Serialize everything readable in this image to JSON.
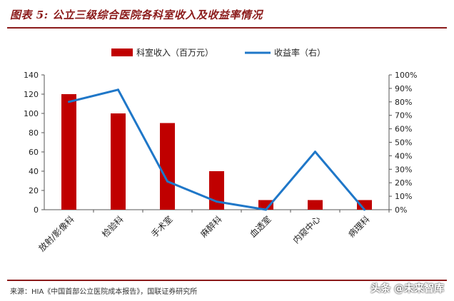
{
  "title": "图表 5: 公立三级综合医院各科室收入及收益率情况",
  "source": "来源：HIA《中国首部公立医院成本报告》，国联证券研究所",
  "watermark": "头条 @未来智库",
  "colors": {
    "bar": "#c00000",
    "line": "#1f77c8",
    "accent": "#8b1a1a"
  },
  "chart_data": {
    "type": "bar",
    "categories": [
      "放射/影像科",
      "检验科",
      "手术室",
      "麻醉科",
      "血透室",
      "内窥中心",
      "病理科"
    ],
    "series": [
      {
        "name": "科室收入（百万元）",
        "type": "bar",
        "axis": "left",
        "values": [
          120,
          100,
          90,
          40,
          10,
          10,
          10
        ]
      },
      {
        "name": "收益率（右）",
        "type": "line",
        "axis": "right",
        "values": [
          80,
          89,
          21,
          6,
          0,
          43,
          0
        ]
      }
    ],
    "y_left": {
      "min": 0,
      "max": 140,
      "ticks": [
        0,
        20,
        40,
        60,
        80,
        100,
        120,
        140
      ]
    },
    "y_right": {
      "min": 0,
      "max": 100,
      "ticks": [
        "0%",
        "10%",
        "20%",
        "30%",
        "40%",
        "50%",
        "60%",
        "70%",
        "80%",
        "90%",
        "100%"
      ]
    },
    "legend_position": "top-center",
    "grid": false
  }
}
